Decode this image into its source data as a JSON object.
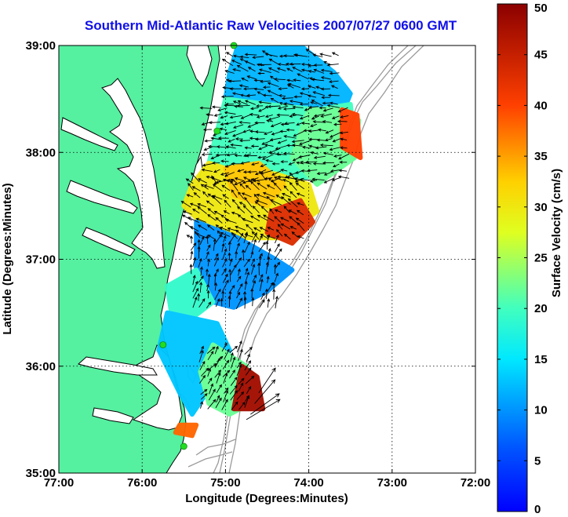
{
  "chart_data": {
    "type": "heatmap",
    "title": "Southern Mid-Atlantic Raw Velocities 2007/07/27 0600 GMT",
    "xlabel": "Longitude (Degrees:Minutes)",
    "ylabel": "Latitude (Degrees:Minutes)",
    "colorbar_label": "Surface Velocity (cm/s)",
    "xlim": [
      -77,
      -72
    ],
    "ylim": [
      35,
      39
    ],
    "x_ticks": [
      {
        "value": -77,
        "label": "77:00"
      },
      {
        "value": -76,
        "label": "76:00"
      },
      {
        "value": -75,
        "label": "75:00"
      },
      {
        "value": -74,
        "label": "74:00"
      },
      {
        "value": -73,
        "label": "73:00"
      },
      {
        "value": -72,
        "label": "72:00"
      }
    ],
    "y_ticks": [
      {
        "value": 35,
        "label": "35:00"
      },
      {
        "value": 36,
        "label": "36:00"
      },
      {
        "value": 37,
        "label": "37:00"
      },
      {
        "value": 38,
        "label": "38:00"
      },
      {
        "value": 39,
        "label": "39:00"
      }
    ],
    "colorbar": {
      "min": 0,
      "max": 50,
      "ticks": [
        {
          "value": 0,
          "label": "0"
        },
        {
          "value": 5,
          "label": "5"
        },
        {
          "value": 10,
          "label": "10"
        },
        {
          "value": 15,
          "label": "15"
        },
        {
          "value": 20,
          "label": "20"
        },
        {
          "value": 25,
          "label": "25"
        },
        {
          "value": 30,
          "label": "30"
        },
        {
          "value": 35,
          "label": "35"
        },
        {
          "value": 40,
          "label": "40"
        },
        {
          "value": 45,
          "label": "45"
        },
        {
          "value": 50,
          "label": "50"
        }
      ],
      "colormap": "jet"
    },
    "grid": true,
    "land_color": "#55f0a0",
    "shelf_contour_color": "#9a9a9a",
    "station_color": "#22dd22",
    "stations": [
      [
        -74.9,
        39.0
      ],
      [
        -75.1,
        38.2
      ],
      [
        -75.75,
        36.2
      ],
      [
        -75.5,
        35.25
      ]
    ],
    "speed_regions": [
      {
        "value": 12,
        "polygon": [
          [
            -74.85,
            39
          ],
          [
            -74.1,
            39
          ],
          [
            -73.7,
            38.75
          ],
          [
            -73.5,
            38.55
          ],
          [
            -73.55,
            38.45
          ],
          [
            -73.9,
            38.4
          ],
          [
            -74.5,
            38.45
          ],
          [
            -75.0,
            38.5
          ],
          [
            -74.95,
            38.75
          ]
        ]
      },
      {
        "value": 20,
        "polygon": [
          [
            -75.0,
            38.5
          ],
          [
            -74.5,
            38.45
          ],
          [
            -73.9,
            38.4
          ],
          [
            -73.5,
            38.45
          ],
          [
            -73.45,
            38.1
          ],
          [
            -73.9,
            37.8
          ],
          [
            -74.3,
            37.7
          ],
          [
            -74.8,
            37.8
          ],
          [
            -75.2,
            37.9
          ],
          [
            -75.1,
            38.2
          ]
        ]
      },
      {
        "value": 30,
        "polygon": [
          [
            -75.2,
            37.9
          ],
          [
            -74.8,
            37.8
          ],
          [
            -74.4,
            37.8
          ],
          [
            -74.0,
            37.7
          ],
          [
            -73.9,
            37.45
          ],
          [
            -74.3,
            37.2
          ],
          [
            -74.85,
            37.2
          ],
          [
            -75.3,
            37.35
          ],
          [
            -75.5,
            37.5
          ],
          [
            -75.4,
            37.7
          ]
        ]
      },
      {
        "value": 22,
        "polygon": [
          [
            -74.0,
            38.4
          ],
          [
            -73.55,
            38.4
          ],
          [
            -73.4,
            38.3
          ],
          [
            -73.45,
            37.95
          ],
          [
            -73.9,
            37.7
          ],
          [
            -74.2,
            37.95
          ]
        ]
      },
      {
        "value": 40,
        "polygon": [
          [
            -73.6,
            38.4
          ],
          [
            -73.42,
            38.35
          ],
          [
            -73.38,
            37.95
          ],
          [
            -73.6,
            38.05
          ]
        ]
      },
      {
        "value": 43,
        "polygon": [
          [
            -74.45,
            37.45
          ],
          [
            -74.1,
            37.55
          ],
          [
            -73.95,
            37.35
          ],
          [
            -74.2,
            37.15
          ],
          [
            -74.5,
            37.25
          ]
        ]
      },
      {
        "value": 33,
        "polygon": [
          [
            -75.0,
            37.85
          ],
          [
            -74.6,
            37.9
          ],
          [
            -74.3,
            37.7
          ],
          [
            -74.5,
            37.5
          ],
          [
            -74.9,
            37.6
          ]
        ]
      },
      {
        "value": 10,
        "polygon": [
          [
            -75.35,
            37.35
          ],
          [
            -74.85,
            37.2
          ],
          [
            -74.4,
            37.0
          ],
          [
            -74.2,
            36.9
          ],
          [
            -74.5,
            36.7
          ],
          [
            -74.9,
            36.55
          ],
          [
            -75.15,
            36.6
          ],
          [
            -75.35,
            36.9
          ]
        ]
      },
      {
        "value": 19,
        "polygon": [
          [
            -75.35,
            36.9
          ],
          [
            -75.15,
            36.6
          ],
          [
            -75.4,
            36.45
          ],
          [
            -75.65,
            36.5
          ],
          [
            -75.7,
            36.75
          ]
        ]
      },
      {
        "value": 13,
        "polygon": [
          [
            -75.7,
            36.5
          ],
          [
            -75.1,
            36.4
          ],
          [
            -74.95,
            36.15
          ],
          [
            -75.1,
            35.9
          ],
          [
            -75.4,
            35.55
          ],
          [
            -75.55,
            35.75
          ],
          [
            -75.8,
            36.15
          ]
        ]
      },
      {
        "value": 22,
        "polygon": [
          [
            -75.15,
            36.2
          ],
          [
            -74.75,
            36.0
          ],
          [
            -74.7,
            35.65
          ],
          [
            -74.95,
            35.55
          ],
          [
            -75.2,
            35.65
          ],
          [
            -75.3,
            35.95
          ]
        ]
      },
      {
        "value": 48,
        "polygon": [
          [
            -74.8,
            36.0
          ],
          [
            -74.62,
            35.9
          ],
          [
            -74.55,
            35.6
          ],
          [
            -74.9,
            35.6
          ]
        ]
      },
      {
        "value": 38,
        "polygon": [
          [
            -75.55,
            35.45
          ],
          [
            -75.35,
            35.45
          ],
          [
            -75.4,
            35.35
          ],
          [
            -75.6,
            35.38
          ]
        ]
      }
    ],
    "vector_grid": {
      "dx": 0.09,
      "dy": 0.075,
      "vectors": [
        {
          "lon_range": [
            -74.9,
            -73.6
          ],
          "lat_range": [
            38.45,
            38.95
          ],
          "u": -0.8,
          "v": 0.2
        },
        {
          "lon_range": [
            -75.15,
            -73.5
          ],
          "lat_range": [
            37.75,
            38.45
          ],
          "u": -0.9,
          "v": -0.1
        },
        {
          "lon_range": [
            -75.4,
            -74.0
          ],
          "lat_range": [
            37.2,
            37.75
          ],
          "u": -0.7,
          "v": 0.5
        },
        {
          "lon_range": [
            -75.4,
            -74.4
          ],
          "lat_range": [
            36.55,
            37.2
          ],
          "u": 0.2,
          "v": 0.7
        },
        {
          "lon_range": [
            -75.3,
            -74.7
          ],
          "lat_range": [
            35.6,
            36.2
          ],
          "u": 0.4,
          "v": 0.6
        }
      ]
    }
  }
}
